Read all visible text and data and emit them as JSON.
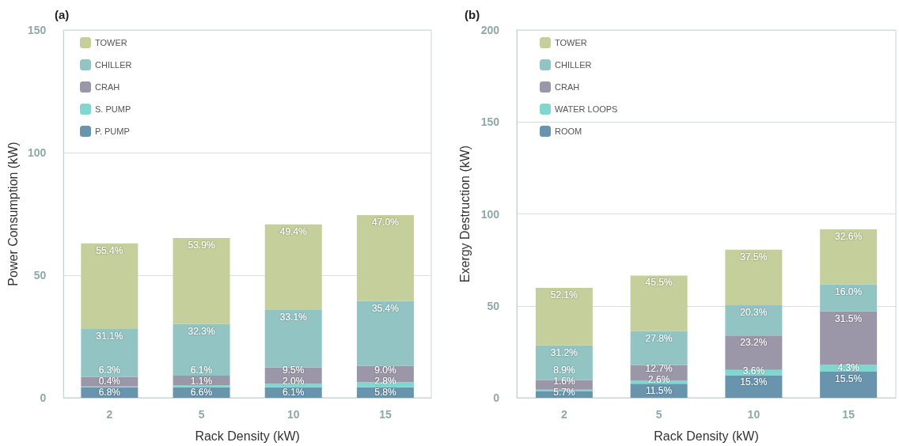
{
  "chart_data": [
    {
      "type": "bar",
      "title": "(a)",
      "xlabel": "Rack Density (kW)",
      "ylabel": "Power Consumption (kW)",
      "categories": [
        "2",
        "5",
        "10",
        "15"
      ],
      "stacked": true,
      "ylim": [
        0,
        150
      ],
      "yticks": [
        0,
        50,
        100,
        150
      ],
      "grid": "y",
      "legend": "top left",
      "series": [
        {
          "name": "P. PUMP",
          "color": "#6994ae",
          "values": [
            4.3,
            4.3,
            4.3,
            4.3
          ]
        },
        {
          "name": "S. PUMP",
          "color": "#7fd7d0",
          "values": [
            0.3,
            0.7,
            1.4,
            2.1
          ]
        },
        {
          "name": "CRAH",
          "color": "#9b97a8",
          "values": [
            3.9,
            4.0,
            6.7,
            6.7
          ]
        },
        {
          "name": "CHILLER",
          "color": "#93c4c4",
          "values": [
            19.6,
            21.1,
            23.4,
            26.4
          ]
        },
        {
          "name": "TOWER",
          "color": "#c5cf9b",
          "values": [
            34.9,
            35.1,
            34.9,
            35.0
          ]
        }
      ],
      "annotations": [
        {
          "text": "6.8%",
          "x": "2",
          "y": 4.3
        },
        {
          "text": "0.4%",
          "x": "2",
          "y": 4.6
        },
        {
          "text": "6.3%",
          "x": "2",
          "y": 8.5
        },
        {
          "text": "31.1%",
          "x": "2",
          "y": 28.1
        },
        {
          "text": "55.4%",
          "x": "2",
          "y": 63.0
        },
        {
          "text": "6.6%",
          "x": "5",
          "y": 4.3
        },
        {
          "text": "1.1%",
          "x": "5",
          "y": 5.0
        },
        {
          "text": "6.1%",
          "x": "5",
          "y": 9.0
        },
        {
          "text": "32.3%",
          "x": "5",
          "y": 30.1
        },
        {
          "text": "53.9%",
          "x": "5",
          "y": 65.2
        },
        {
          "text": "6.1%",
          "x": "10",
          "y": 4.3
        },
        {
          "text": "2.0%",
          "x": "10",
          "y": 5.7
        },
        {
          "text": "9.5%",
          "x": "10",
          "y": 12.4
        },
        {
          "text": "33.1%",
          "x": "10",
          "y": 35.8
        },
        {
          "text": "49.4%",
          "x": "10",
          "y": 70.7
        },
        {
          "text": "5.8%",
          "x": "15",
          "y": 4.3
        },
        {
          "text": "2.8%",
          "x": "15",
          "y": 6.4
        },
        {
          "text": "9.0%",
          "x": "15",
          "y": 13.1
        },
        {
          "text": "35.4%",
          "x": "15",
          "y": 39.5
        },
        {
          "text": "47.0%",
          "x": "15",
          "y": 74.5
        }
      ]
    },
    {
      "type": "bar",
      "title": "(b)",
      "xlabel": "Rack Density (kW)",
      "ylabel": "Exergy Destruction (kW)",
      "categories": [
        "2",
        "5",
        "10",
        "15"
      ],
      "stacked": true,
      "ylim": [
        0,
        200
      ],
      "yticks": [
        0,
        50,
        100,
        150,
        200
      ],
      "grid": "y",
      "legend": "top left",
      "series": [
        {
          "name": "ROOM",
          "color": "#6994ae",
          "values": [
            3.4,
            7.6,
            12.3,
            14.2
          ]
        },
        {
          "name": "WATER LOOPS",
          "color": "#7fd7d0",
          "values": [
            1.0,
            1.7,
            2.9,
            3.9
          ]
        },
        {
          "name": "CRAH",
          "color": "#9b97a8",
          "values": [
            5.3,
            8.4,
            18.7,
            28.9
          ]
        },
        {
          "name": "CHILLER",
          "color": "#93c4c4",
          "values": [
            18.8,
            18.5,
            16.4,
            14.7
          ]
        },
        {
          "name": "TOWER",
          "color": "#c5cf9b",
          "values": [
            31.3,
            30.3,
            30.2,
            29.9
          ]
        }
      ],
      "annotations": [
        {
          "text": "5.7%",
          "x": "2",
          "y": 3.4
        },
        {
          "text": "1.6%",
          "x": "2",
          "y": 4.4
        },
        {
          "text": "8.9%",
          "x": "2",
          "y": 9.7
        },
        {
          "text": "31.2%",
          "x": "2",
          "y": 28.5
        },
        {
          "text": "52.1%",
          "x": "2",
          "y": 59.8
        },
        {
          "text": "11.5%",
          "x": "5",
          "y": 7.6
        },
        {
          "text": "2.6%",
          "x": "5",
          "y": 9.3
        },
        {
          "text": "12.7%",
          "x": "5",
          "y": 17.7
        },
        {
          "text": "27.8%",
          "x": "5",
          "y": 36.2
        },
        {
          "text": "45.5%",
          "x": "5",
          "y": 66.5
        },
        {
          "text": "15.3%",
          "x": "10",
          "y": 12.3
        },
        {
          "text": "3.6%",
          "x": "10",
          "y": 15.2
        },
        {
          "text": "23.2%",
          "x": "10",
          "y": 33.9
        },
        {
          "text": "20.3%",
          "x": "10",
          "y": 50.3
        },
        {
          "text": "37.5%",
          "x": "10",
          "y": 80.5
        },
        {
          "text": "15.5%",
          "x": "15",
          "y": 14.2
        },
        {
          "text": "4.3%",
          "x": "15",
          "y": 18.1
        },
        {
          "text": "31.5%",
          "x": "15",
          "y": 47.0
        },
        {
          "text": "16.0%",
          "x": "15",
          "y": 61.7
        },
        {
          "text": "32.6%",
          "x": "15",
          "y": 91.6
        }
      ]
    }
  ]
}
